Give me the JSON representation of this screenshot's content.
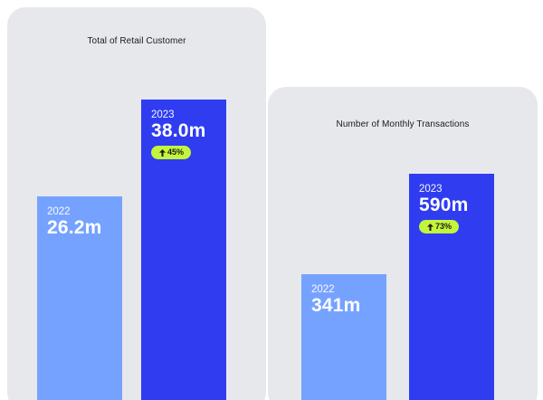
{
  "colors": {
    "panel_bg": "#e7e8ec",
    "bar_2022": "#76a2ff",
    "bar_2023": "#2f3cf0",
    "badge_bg": "#c3f53c",
    "badge_text": "#1b1b1b",
    "bar_text": "#ffffff"
  },
  "icons": {
    "growth": "arrow-up-icon"
  },
  "chart_data": [
    {
      "type": "bar",
      "title": "Total of Retail Customer",
      "categories": [
        "2022",
        "2023"
      ],
      "values": [
        26.2,
        38.0
      ],
      "unit": "m",
      "value_labels": [
        "26.2m",
        "38.0m"
      ],
      "growth_badge": "45%",
      "grid": false
    },
    {
      "type": "bar",
      "title": "Number of Monthly Transactions",
      "categories": [
        "2022",
        "2023"
      ],
      "values": [
        341,
        590
      ],
      "unit": "m",
      "value_labels": [
        "341m",
        "590m"
      ],
      "growth_badge": "73%",
      "grid": false
    }
  ]
}
